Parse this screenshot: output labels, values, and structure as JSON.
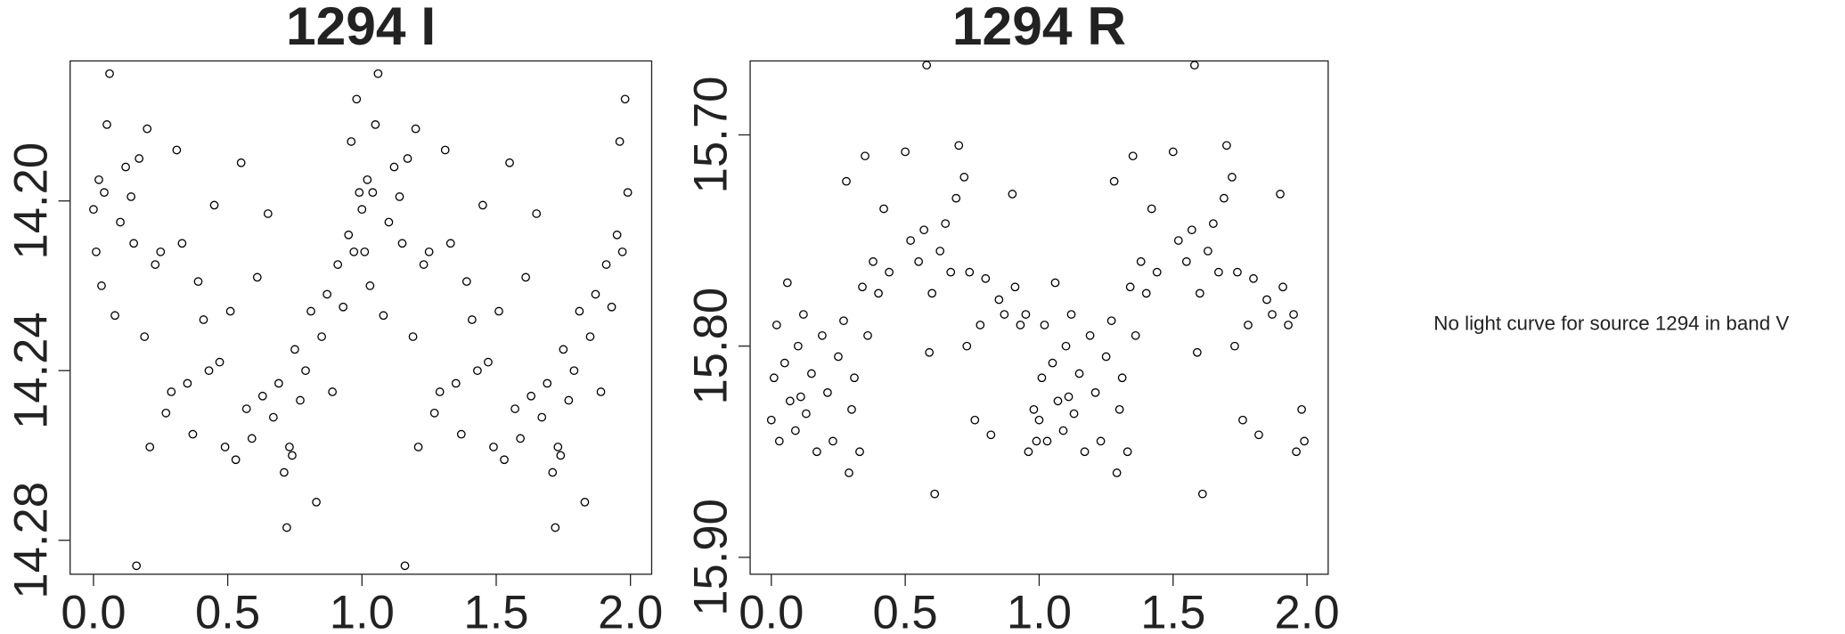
{
  "chart_data": [
    {
      "type": "scatter",
      "title": "1294 I",
      "x": [
        0,
        0.01,
        0.02,
        0.03,
        0.04,
        0.05,
        0.06,
        0.08,
        0.1,
        0.12,
        0.14,
        0.15,
        0.17,
        0.19,
        0.2,
        0.21,
        0.23,
        0.25,
        0.27,
        0.29,
        0.31,
        0.33,
        0.35,
        0.37,
        0.39,
        0.41,
        0.43,
        0.45,
        0.47,
        0.49,
        0.51,
        0.53,
        0.55,
        0.57,
        0.59,
        0.61,
        0.63,
        0.65,
        0.67,
        0.69,
        0.71,
        0.73,
        0.75,
        0.77,
        0.79,
        0.81,
        0.83,
        0.85,
        0.87,
        0.89,
        0.91,
        0.93,
        0.95,
        0.96,
        0.97,
        0.98,
        0.99,
        0.16,
        0.72,
        0.74,
        1,
        1.01,
        1.02,
        1.03,
        1.04,
        1.05,
        1.06,
        1.08,
        1.1,
        1.12,
        1.14,
        1.15,
        1.17,
        1.19,
        1.2,
        1.21,
        1.23,
        1.25,
        1.27,
        1.29,
        1.31,
        1.33,
        1.35,
        1.37,
        1.39,
        1.41,
        1.43,
        1.45,
        1.47,
        1.49,
        1.51,
        1.53,
        1.55,
        1.57,
        1.59,
        1.61,
        1.63,
        1.65,
        1.67,
        1.69,
        1.71,
        1.73,
        1.75,
        1.77,
        1.79,
        1.81,
        1.83,
        1.85,
        1.87,
        1.89,
        1.91,
        1.93,
        1.95,
        1.96,
        1.97,
        1.98,
        1.99,
        1.16,
        1.72,
        1.74
      ],
      "values": [
        14.202,
        14.212,
        14.195,
        14.22,
        14.198,
        14.182,
        14.17,
        14.227,
        14.205,
        14.192,
        14.199,
        14.21,
        14.19,
        14.232,
        14.183,
        14.258,
        14.215,
        14.212,
        14.25,
        14.245,
        14.188,
        14.21,
        14.243,
        14.255,
        14.219,
        14.228,
        14.24,
        14.201,
        14.238,
        14.258,
        14.226,
        14.261,
        14.191,
        14.249,
        14.256,
        14.218,
        14.246,
        14.203,
        14.251,
        14.243,
        14.264,
        14.258,
        14.235,
        14.247,
        14.24,
        14.226,
        14.271,
        14.232,
        14.222,
        14.245,
        14.215,
        14.225,
        14.208,
        14.186,
        14.212,
        14.176,
        14.198,
        14.286,
        14.277,
        14.26,
        14.202,
        14.212,
        14.195,
        14.22,
        14.198,
        14.182,
        14.17,
        14.227,
        14.205,
        14.192,
        14.199,
        14.21,
        14.19,
        14.232,
        14.183,
        14.258,
        14.215,
        14.212,
        14.25,
        14.245,
        14.188,
        14.21,
        14.243,
        14.255,
        14.219,
        14.228,
        14.24,
        14.201,
        14.238,
        14.258,
        14.226,
        14.261,
        14.191,
        14.249,
        14.256,
        14.218,
        14.246,
        14.203,
        14.251,
        14.243,
        14.264,
        14.258,
        14.235,
        14.247,
        14.24,
        14.226,
        14.271,
        14.232,
        14.222,
        14.245,
        14.215,
        14.225,
        14.208,
        14.186,
        14.212,
        14.176,
        14.198,
        14.286,
        14.277,
        14.26
      ],
      "color": "#000000",
      "xlim": [
        -0.087,
        2.079
      ],
      "ylim": [
        14.288,
        14.167
      ],
      "xticks": [
        {
          "value": 0,
          "label": "0.0"
        },
        {
          "value": 0.5,
          "label": "0.5"
        },
        {
          "value": 1,
          "label": "1.0"
        },
        {
          "value": 1.5,
          "label": "1.5"
        },
        {
          "value": 2,
          "label": "2.0"
        }
      ],
      "yticks": [
        {
          "value": 14.2,
          "label": "14.20"
        },
        {
          "value": 14.24,
          "label": "14.24"
        },
        {
          "value": 14.28,
          "label": "14.28"
        }
      ]
    },
    {
      "type": "scatter",
      "title": "1294 R",
      "x": [
        0,
        0.01,
        0.02,
        0.03,
        0.05,
        0.06,
        0.07,
        0.09,
        0.1,
        0.12,
        0.13,
        0.15,
        0.17,
        0.19,
        0.21,
        0.23,
        0.25,
        0.27,
        0.28,
        0.29,
        0.3,
        0.31,
        0.33,
        0.34,
        0.35,
        0.36,
        0.38,
        0.4,
        0.42,
        0.44,
        0.5,
        0.52,
        0.55,
        0.57,
        0.58,
        0.59,
        0.6,
        0.61,
        0.63,
        0.65,
        0.67,
        0.69,
        0.7,
        0.72,
        0.73,
        0.74,
        0.76,
        0.78,
        0.8,
        0.82,
        0.85,
        0.87,
        0.9,
        0.91,
        0.93,
        0.95,
        0.96,
        0.98,
        0.99,
        0.11,
        1,
        1.01,
        1.02,
        1.03,
        1.05,
        1.06,
        1.07,
        1.09,
        1.1,
        1.12,
        1.13,
        1.15,
        1.17,
        1.19,
        1.21,
        1.23,
        1.25,
        1.27,
        1.28,
        1.29,
        1.3,
        1.31,
        1.33,
        1.34,
        1.35,
        1.36,
        1.38,
        1.4,
        1.42,
        1.44,
        1.5,
        1.52,
        1.55,
        1.57,
        1.58,
        1.59,
        1.6,
        1.61,
        1.63,
        1.65,
        1.67,
        1.69,
        1.7,
        1.72,
        1.73,
        1.74,
        1.76,
        1.78,
        1.8,
        1.82,
        1.85,
        1.87,
        1.9,
        1.91,
        1.93,
        1.95,
        1.96,
        1.98,
        1.99,
        1.11
      ],
      "values": [
        15.835,
        15.815,
        15.79,
        15.845,
        15.808,
        15.77,
        15.826,
        15.84,
        15.8,
        15.785,
        15.832,
        15.813,
        15.85,
        15.795,
        15.822,
        15.845,
        15.805,
        15.788,
        15.722,
        15.86,
        15.83,
        15.815,
        15.85,
        15.772,
        15.71,
        15.795,
        15.76,
        15.775,
        15.735,
        15.765,
        15.708,
        15.75,
        15.76,
        15.745,
        15.667,
        15.803,
        15.775,
        15.87,
        15.755,
        15.742,
        15.765,
        15.73,
        15.705,
        15.72,
        15.8,
        15.765,
        15.835,
        15.79,
        15.768,
        15.842,
        15.778,
        15.785,
        15.728,
        15.772,
        15.79,
        15.785,
        15.85,
        15.83,
        15.845,
        15.824,
        15.835,
        15.815,
        15.79,
        15.845,
        15.808,
        15.77,
        15.826,
        15.84,
        15.8,
        15.785,
        15.832,
        15.813,
        15.85,
        15.795,
        15.822,
        15.845,
        15.805,
        15.788,
        15.722,
        15.86,
        15.83,
        15.815,
        15.85,
        15.772,
        15.71,
        15.795,
        15.76,
        15.775,
        15.735,
        15.765,
        15.708,
        15.75,
        15.76,
        15.745,
        15.667,
        15.803,
        15.775,
        15.87,
        15.755,
        15.742,
        15.765,
        15.73,
        15.705,
        15.72,
        15.8,
        15.765,
        15.835,
        15.79,
        15.768,
        15.842,
        15.778,
        15.785,
        15.728,
        15.772,
        15.79,
        15.785,
        15.85,
        15.83,
        15.845,
        15.824
      ],
      "color": "#000000",
      "xlim": [
        -0.079,
        2.079
      ],
      "ylim": [
        15.908,
        15.665
      ],
      "xticks": [
        {
          "value": 0,
          "label": "0.0"
        },
        {
          "value": 0.5,
          "label": "0.5"
        },
        {
          "value": 1,
          "label": "1.0"
        },
        {
          "value": 1.5,
          "label": "1.5"
        },
        {
          "value": 2,
          "label": "2.0"
        }
      ],
      "yticks": [
        {
          "value": 15.7,
          "label": "15.70"
        },
        {
          "value": 15.8,
          "label": "15.80"
        },
        {
          "value": 15.9,
          "label": "15.90"
        }
      ]
    }
  ],
  "note": "No light curve for source 1294 in band V"
}
